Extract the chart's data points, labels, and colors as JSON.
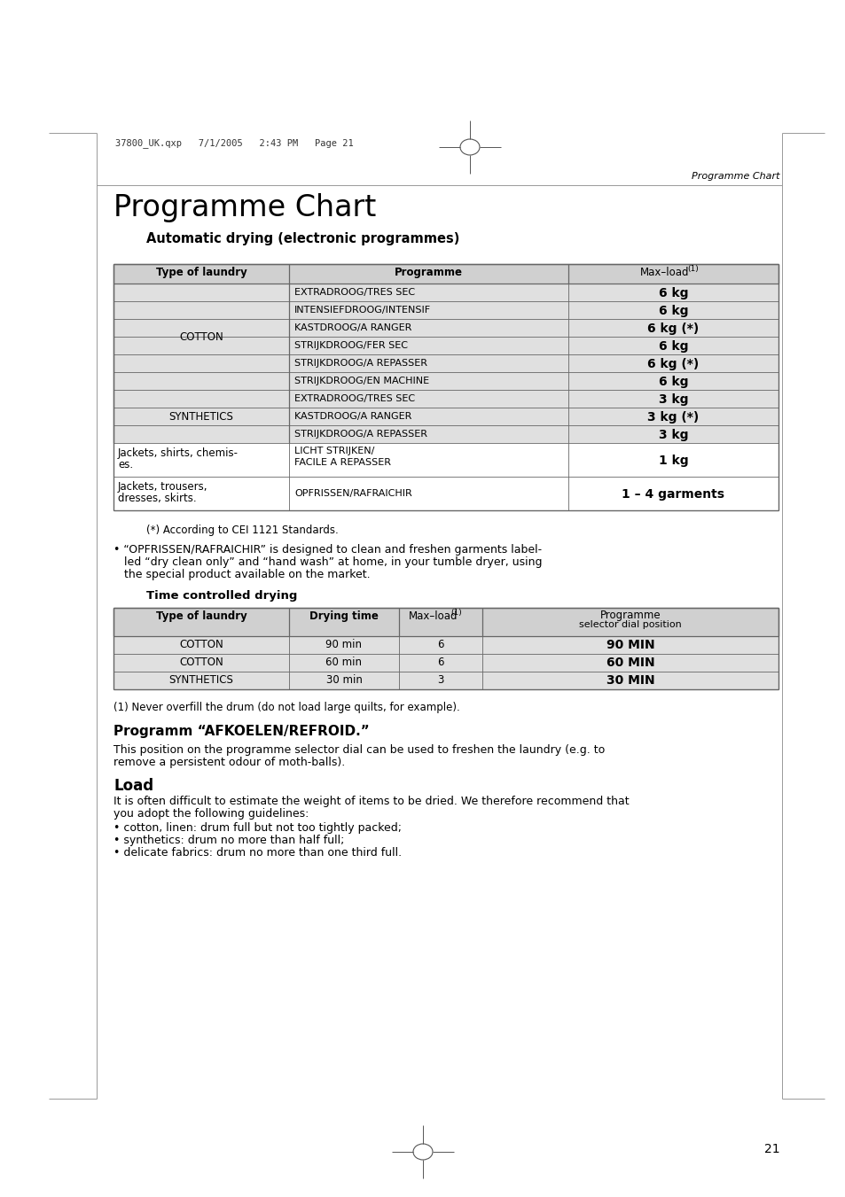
{
  "page_title": "Programme Chart",
  "page_subtitle": "Automatic drying (electronic programmes)",
  "header_right": "Programme Chart",
  "file_info": "37800_UK.qxp   7/1/2005   2:43 PM   Page 21",
  "page_number": "21",
  "table1_rows": [
    [
      "COTTON",
      "EXTRADROOG/TRES SEC",
      "6 kg"
    ],
    [
      "",
      "INTENSIEFDROOG/INTENSIF",
      "6 kg"
    ],
    [
      "",
      "KASTDROOG/A RANGER",
      "6 kg (*)"
    ],
    [
      "",
      "STRIJKDROOG/FER SEC",
      "6 kg"
    ],
    [
      "",
      "STRIJKDROOG/A REPASSER",
      "6 kg (*)"
    ],
    [
      "",
      "STRIJKDROOG/EN MACHINE",
      "6 kg"
    ],
    [
      "SYNTHETICS",
      "EXTRADROOG/TRES SEC",
      "3 kg"
    ],
    [
      "",
      "KASTDROOG/A RANGER",
      "3 kg (*)"
    ],
    [
      "",
      "STRIJKDROOG/A REPASSER",
      "3 kg"
    ],
    [
      "Jackets, shirts, chemis-\nes.",
      "LICHT STRIJKEN/\nFACILE A REPASSER",
      "1 kg"
    ],
    [
      "Jackets, trousers,\ndresses, skirts.",
      "OPFRISSEN/RAFRAICHIR",
      "1 – 4 garments"
    ]
  ],
  "footnote_star": "(*) According to CEI 1121 Standards.",
  "bullet_line1": "• “OPFRISSEN/RAFRAICHIR” is designed to clean and freshen garments label-",
  "bullet_line2": "led “dry clean only” and “hand wash” at home, in your tumble dryer, using",
  "bullet_line3": "the special product available on the market.",
  "time_drying_title": "Time controlled drying",
  "table2_rows": [
    [
      "COTTON",
      "90 min",
      "6",
      "90 MIN"
    ],
    [
      "COTTON",
      "60 min",
      "6",
      "60 MIN"
    ],
    [
      "SYNTHETICS",
      "30 min",
      "3",
      "30 MIN"
    ]
  ],
  "footnote1": "(1) Never overfill the drum (do not load large quilts, for example).",
  "section2_title": "Programm “AFKOELEN/REFROID.”",
  "section2_line1": "This position on the programme selector dial can be used to freshen the laundry (e.g. to",
  "section2_line2": "remove a persistent odour of moth-balls).",
  "section3_title": "Load",
  "section3_line1": "It is often difficult to estimate the weight of items to be dried. We therefore recommend that",
  "section3_line2": "you adopt the following guidelines:",
  "bullet1": "• cotton, linen: drum full but not too tightly packed;",
  "bullet2": "• synthetics: drum no more than half full;",
  "bullet3": "• delicate fabrics: drum no more than one third full.",
  "bg_color": "#ffffff",
  "header_bg": "#d0d0d0",
  "cotton_bg": "#e0e0e0",
  "synth_bg": "#e0e0e0",
  "border_color": "#666666",
  "col4_bg": "#d0d0d0"
}
